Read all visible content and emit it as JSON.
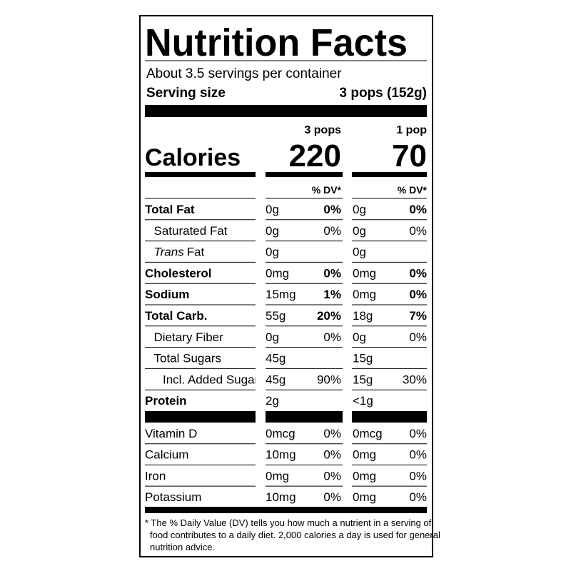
{
  "title": "Nutrition Facts",
  "servings": "About 3.5 servings per container",
  "serving_size": {
    "label": "Serving size",
    "value": "3 pops (152g)"
  },
  "calories": {
    "label": "Calories",
    "columns": [
      {
        "header": "3 pops",
        "value": "220"
      },
      {
        "header": "1 pop",
        "value": "70"
      }
    ]
  },
  "dv_headers": [
    "% DV*",
    "% DV*"
  ],
  "nutrients": [
    {
      "name": "Total Fat",
      "cols": [
        {
          "amount": "0g",
          "dv": "0%"
        },
        {
          "amount": "0g",
          "dv": "0%"
        }
      ],
      "sub": [
        {
          "name": "Saturated Fat",
          "cols": [
            {
              "amount": "0g",
              "dv": "0%"
            },
            {
              "amount": "0g",
              "dv": "0%"
            }
          ]
        },
        {
          "name_italic": "Trans",
          "name": "Fat",
          "cols": [
            {
              "amount": "0g"
            },
            {
              "amount": "0g"
            }
          ]
        }
      ]
    },
    {
      "name": "Cholesterol",
      "cols": [
        {
          "amount": "0mg",
          "dv": "0%"
        },
        {
          "amount": "0mg",
          "dv": "0%"
        }
      ]
    },
    {
      "name": "Sodium",
      "cols": [
        {
          "amount": "15mg",
          "dv": "1%"
        },
        {
          "amount": "0mg",
          "dv": "0%"
        }
      ]
    },
    {
      "name": "Total Carb.",
      "cols": [
        {
          "amount": "55g",
          "dv": "20%"
        },
        {
          "amount": "18g",
          "dv": "7%"
        }
      ],
      "sub": [
        {
          "name": "Dietary Fiber",
          "cols": [
            {
              "amount": "0g",
              "dv": "0%"
            },
            {
              "amount": "0g",
              "dv": "0%"
            }
          ]
        },
        {
          "name": "Total Sugars",
          "cols": [
            {
              "amount": "45g"
            },
            {
              "amount": "15g"
            }
          ],
          "sub": [
            {
              "name": "Incl. Added Sugars",
              "cols": [
                {
                  "amount": "45g",
                  "dv": "90%"
                },
                {
                  "amount": "15g",
                  "dv": "30%"
                }
              ]
            }
          ]
        }
      ]
    },
    {
      "name": "Protein",
      "cols": [
        {
          "amount": "2g"
        },
        {
          "amount": "<1g"
        }
      ]
    }
  ],
  "vitamins": [
    {
      "name": "Vitamin D",
      "cols": [
        {
          "amount": "0mcg",
          "dv": "0%"
        },
        {
          "amount": "0mcg",
          "dv": "0%"
        }
      ]
    },
    {
      "name": "Calcium",
      "cols": [
        {
          "amount": "10mg",
          "dv": "0%"
        },
        {
          "amount": "0mg",
          "dv": "0%"
        }
      ]
    },
    {
      "name": "Iron",
      "cols": [
        {
          "amount": "0mg",
          "dv": "0%"
        },
        {
          "amount": "0mg",
          "dv": "0%"
        }
      ]
    },
    {
      "name": "Potassium",
      "cols": [
        {
          "amount": "10mg",
          "dv": "0%"
        },
        {
          "amount": "0mg",
          "dv": "0%"
        }
      ]
    }
  ],
  "footnote": [
    "* The % Daily Value (DV) tells you how much a nutrient in a serving of",
    "food contributes to a daily diet. 2,000 calories a day is used for general",
    "nutrition advice."
  ]
}
